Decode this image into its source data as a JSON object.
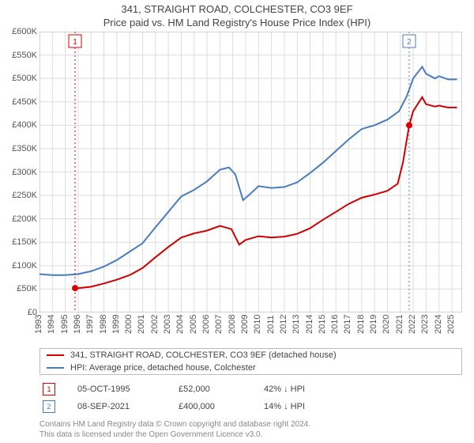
{
  "header": {
    "title": "341, STRAIGHT ROAD, COLCHESTER, CO3 9EF",
    "subtitle": "Price paid vs. HM Land Registry's House Price Index (HPI)"
  },
  "chart": {
    "type": "line",
    "xlim": [
      1993,
      2025.8
    ],
    "ylim": [
      0,
      600000
    ],
    "y_ticks": [
      0,
      50000,
      100000,
      150000,
      200000,
      250000,
      300000,
      350000,
      400000,
      450000,
      500000,
      550000,
      600000
    ],
    "y_tick_labels": [
      "£0",
      "£50K",
      "£100K",
      "£150K",
      "£200K",
      "£250K",
      "£300K",
      "£350K",
      "£400K",
      "£450K",
      "£500K",
      "£550K",
      "£600K"
    ],
    "x_ticks": [
      1993,
      1994,
      1995,
      1996,
      1997,
      1998,
      1999,
      2000,
      2001,
      2002,
      2003,
      2004,
      2005,
      2006,
      2007,
      2008,
      2009,
      2010,
      2011,
      2012,
      2013,
      2014,
      2015,
      2016,
      2017,
      2018,
      2019,
      2020,
      2021,
      2022,
      2023,
      2024,
      2025
    ],
    "grid_color": "#dddddd",
    "background_color": "#ffffff",
    "axis_font_size": 11,
    "series": [
      {
        "name": "property",
        "color": "#d00000",
        "width": 2,
        "points": [
          [
            1995.76,
            52000
          ],
          [
            1996,
            52000
          ],
          [
            1997,
            55000
          ],
          [
            1998,
            62000
          ],
          [
            1999,
            70000
          ],
          [
            2000,
            80000
          ],
          [
            2001,
            95000
          ],
          [
            2002,
            118000
          ],
          [
            2003,
            140000
          ],
          [
            2004,
            160000
          ],
          [
            2005,
            169000
          ],
          [
            2006,
            175000
          ],
          [
            2007,
            185000
          ],
          [
            2007.9,
            178000
          ],
          [
            2008.5,
            145000
          ],
          [
            2009,
            155000
          ],
          [
            2010,
            163000
          ],
          [
            2011,
            160000
          ],
          [
            2012,
            162000
          ],
          [
            2013,
            168000
          ],
          [
            2014,
            180000
          ],
          [
            2015,
            198000
          ],
          [
            2016,
            215000
          ],
          [
            2017,
            232000
          ],
          [
            2018,
            245000
          ],
          [
            2019,
            252000
          ],
          [
            2020,
            260000
          ],
          [
            2020.8,
            275000
          ],
          [
            2021.2,
            320000
          ],
          [
            2021.69,
            400000
          ],
          [
            2022,
            430000
          ],
          [
            2022.7,
            460000
          ],
          [
            2023,
            445000
          ],
          [
            2023.7,
            440000
          ],
          [
            2024,
            442000
          ],
          [
            2024.7,
            438000
          ],
          [
            2025.4,
            438000
          ]
        ]
      },
      {
        "name": "hpi",
        "color": "#4a7bbf",
        "width": 2,
        "points": [
          [
            1993,
            82000
          ],
          [
            1994,
            80000
          ],
          [
            1995,
            80000
          ],
          [
            1996,
            82000
          ],
          [
            1997,
            88000
          ],
          [
            1998,
            98000
          ],
          [
            1999,
            112000
          ],
          [
            2000,
            130000
          ],
          [
            2001,
            148000
          ],
          [
            2002,
            182000
          ],
          [
            2003,
            215000
          ],
          [
            2004,
            248000
          ],
          [
            2005,
            262000
          ],
          [
            2006,
            280000
          ],
          [
            2007,
            305000
          ],
          [
            2007.7,
            310000
          ],
          [
            2008.2,
            295000
          ],
          [
            2008.8,
            240000
          ],
          [
            2009.3,
            252000
          ],
          [
            2010,
            270000
          ],
          [
            2011,
            266000
          ],
          [
            2012,
            268000
          ],
          [
            2013,
            278000
          ],
          [
            2014,
            298000
          ],
          [
            2015,
            320000
          ],
          [
            2016,
            345000
          ],
          [
            2017,
            370000
          ],
          [
            2018,
            392000
          ],
          [
            2019,
            400000
          ],
          [
            2020,
            412000
          ],
          [
            2020.9,
            430000
          ],
          [
            2021.5,
            462000
          ],
          [
            2022,
            500000
          ],
          [
            2022.7,
            525000
          ],
          [
            2023,
            510000
          ],
          [
            2023.7,
            500000
          ],
          [
            2024,
            505000
          ],
          [
            2024.7,
            498000
          ],
          [
            2025.4,
            498000
          ]
        ]
      }
    ],
    "markers": [
      {
        "n": 1,
        "x": 1995.76,
        "y": 52000,
        "color": "red"
      },
      {
        "n": 2,
        "x": 2021.69,
        "y": 400000,
        "color": "blue"
      }
    ]
  },
  "legend": {
    "items": [
      {
        "color": "red",
        "label": "341, STRAIGHT ROAD, COLCHESTER, CO3 9EF (detached house)"
      },
      {
        "color": "blue",
        "label": "HPI: Average price, detached house, Colchester"
      }
    ]
  },
  "transactions": [
    {
      "n": 1,
      "color": "red",
      "date": "05-OCT-1995",
      "price": "£52,000",
      "delta": "42% ↓ HPI"
    },
    {
      "n": 2,
      "color": "blue",
      "date": "08-SEP-2021",
      "price": "£400,000",
      "delta": "14% ↓ HPI"
    }
  ],
  "footer": {
    "line1": "Contains HM Land Registry data © Crown copyright and database right 2024.",
    "line2": "This data is licensed under the Open Government Licence v3.0."
  }
}
